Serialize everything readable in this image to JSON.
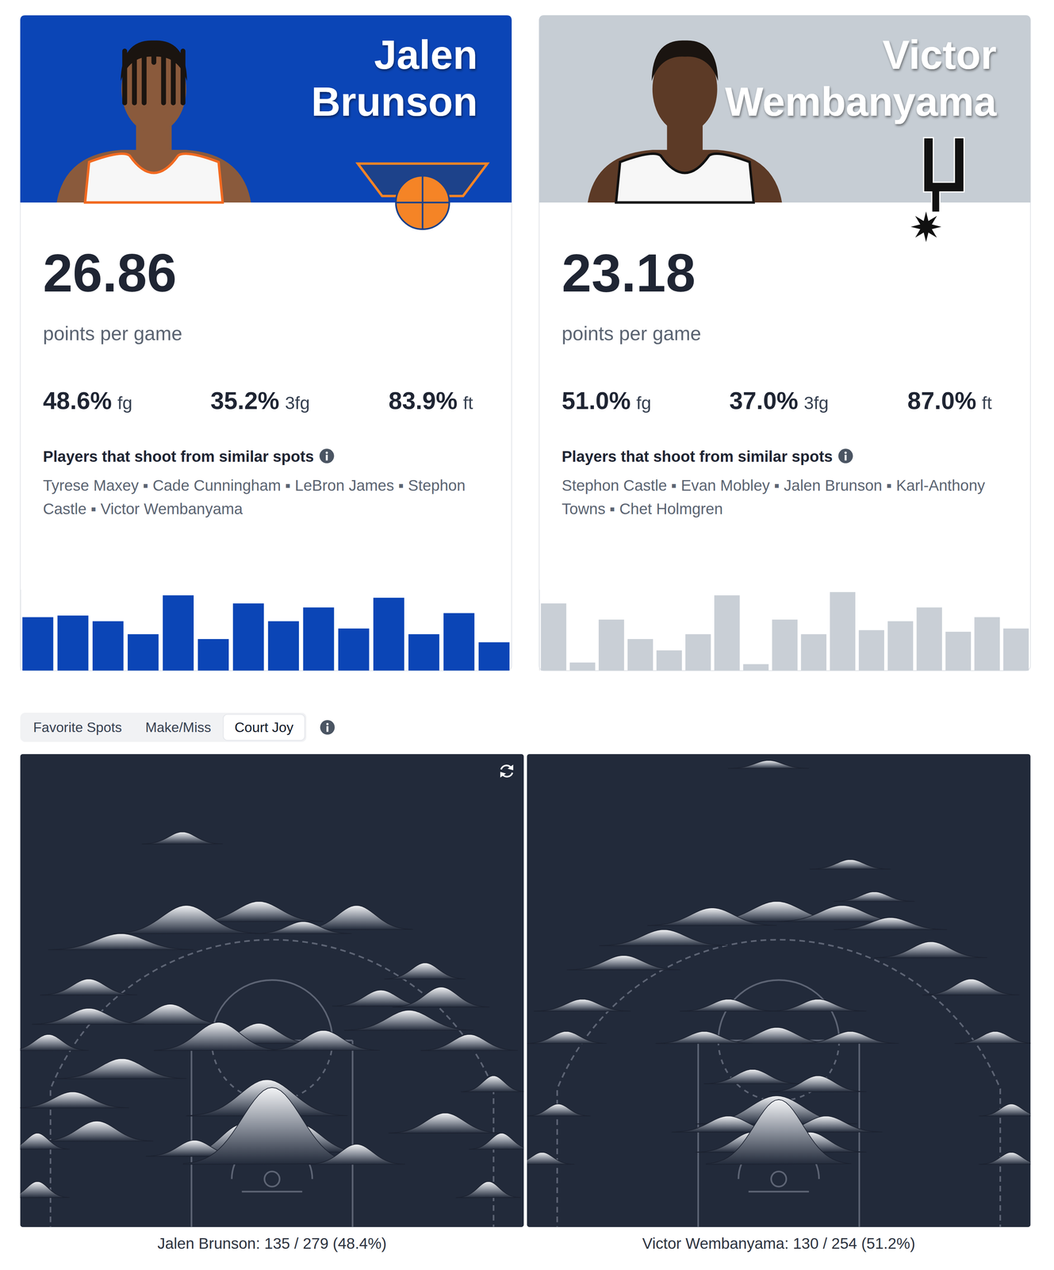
{
  "players": [
    {
      "first_name": "Jalen",
      "last_name": "Brunson",
      "ppg": "26.86",
      "ppg_label": "points per game",
      "stats": [
        {
          "value": "48.6%",
          "label": "fg"
        },
        {
          "value": "35.2%",
          "label": "3fg"
        },
        {
          "value": "83.9%",
          "label": "ft"
        }
      ],
      "similar_title": "Players that shoot from similar spots",
      "similar": [
        "Tyrese Maxey",
        "Cade Cunningham",
        "LeBron James",
        "Stephon Castle",
        "Victor Wembanyama"
      ]
    },
    {
      "first_name": "Victor",
      "last_name": "Wembanyama",
      "ppg": "23.18",
      "ppg_label": "points per game",
      "stats": [
        {
          "value": "51.0%",
          "label": "fg"
        },
        {
          "value": "37.0%",
          "label": "3fg"
        },
        {
          "value": "87.0%",
          "label": "ft"
        }
      ],
      "similar_title": "Players that shoot from similar spots",
      "similar": [
        "Stephon Castle",
        "Evan Mobley",
        "Jalen Brunson",
        "Karl-Anthony Towns",
        "Chet Holmgren"
      ]
    }
  ],
  "separator": "▪",
  "chart_data": [
    {
      "type": "bar",
      "categories": [
        null,
        null,
        null,
        null,
        null,
        null,
        null,
        null,
        null,
        null,
        null,
        null,
        null,
        null
      ],
      "values": [
        66,
        68,
        61,
        45,
        93,
        39,
        83,
        61,
        78,
        52,
        90,
        45,
        71,
        35
      ],
      "color": "#0b45b6",
      "ylim": [
        0,
        100
      ],
      "tick_labels": false,
      "grid": false
    },
    {
      "type": "bar",
      "categories": [
        null,
        null,
        null,
        null,
        null,
        null,
        null,
        null,
        null,
        null,
        null,
        null,
        null,
        null,
        null,
        null,
        null
      ],
      "values": [
        83,
        10,
        63,
        39,
        25,
        45,
        93,
        8,
        63,
        45,
        97,
        50,
        61,
        78,
        48,
        66,
        52
      ],
      "color": "#c9cfd6",
      "ylim": [
        0,
        100
      ],
      "tick_labels": false,
      "grid": false
    }
  ],
  "tabs": {
    "items": [
      "Favorite Spots",
      "Make/Miss",
      "Court Joy"
    ],
    "active": 2
  },
  "court_joy": [
    {
      "caption": "Jalen Brunson: 135 / 279 (48.4%)",
      "bumps": [
        [
          -8.9,
          38.5,
          15,
          4
        ],
        [
          -1.3,
          30.8,
          25,
          6.4
        ],
        [
          8.4,
          30.0,
          30,
          5.6
        ],
        [
          -8.5,
          29.6,
          35,
          7.2
        ],
        [
          3.1,
          29.6,
          15,
          4.8
        ],
        [
          -15.0,
          28.0,
          20,
          7.2
        ],
        [
          15.2,
          25.1,
          20,
          4
        ],
        [
          -18.2,
          23.5,
          20,
          4.8
        ],
        [
          10.8,
          22.4,
          20,
          4.8
        ],
        [
          16.8,
          22.3,
          25,
          4.8
        ],
        [
          -10.1,
          20.6,
          25,
          5.6
        ],
        [
          -18.2,
          20.6,
          20,
          5.6
        ],
        [
          13.6,
          20.0,
          25,
          6.4
        ],
        [
          -1.3,
          18.7,
          25,
          5.6
        ],
        [
          -5.3,
          18.0,
          35,
          6.4
        ],
        [
          5.1,
          18.0,
          25,
          5.6
        ],
        [
          19.6,
          18.0,
          20,
          4.8
        ],
        [
          -22.2,
          18.0,
          20,
          4
        ],
        [
          -14.9,
          15.2,
          25,
          6.4
        ],
        [
          22.0,
          13.9,
          20,
          3.2
        ],
        [
          -19.8,
          12.3,
          20,
          5.6
        ],
        [
          -0.5,
          11.5,
          45,
          8
        ],
        [
          17.2,
          9.8,
          25,
          5.6
        ],
        [
          -17.4,
          9.0,
          25,
          5.6
        ],
        [
          -23.3,
          8.2,
          20,
          3.2
        ],
        [
          22.8,
          8.2,
          20,
          3.2
        ],
        [
          2.7,
          7.9,
          35,
          6.4
        ],
        [
          -2.9,
          7.5,
          40,
          6.4
        ],
        [
          -7.7,
          7.5,
          20,
          4.8
        ],
        [
          0,
          6.7,
          95,
          8.8
        ],
        [
          8.4,
          6.7,
          25,
          4.8
        ],
        [
          -23.3,
          3.4,
          20,
          3.2
        ],
        [
          21.5,
          3.4,
          20,
          3.2
        ]
      ]
    },
    {
      "caption": "Victor Wembanyama: 130 / 254 (51.2%)",
      "bumps": [
        [
          -1,
          46,
          10,
          4
        ],
        [
          7.1,
          36,
          12,
          4
        ],
        [
          9.5,
          32.8,
          12,
          4
        ],
        [
          -0.2,
          30.8,
          25,
          7.2
        ],
        [
          6.3,
          30.8,
          20,
          6.4
        ],
        [
          -6.6,
          30.4,
          22,
          6.4
        ],
        [
          11.1,
          30,
          15,
          5.6
        ],
        [
          -11.4,
          28.4,
          20,
          6.4
        ],
        [
          15.1,
          27.2,
          20,
          5.6
        ],
        [
          -15.4,
          26,
          18,
          5.6
        ],
        [
          19.1,
          23.5,
          20,
          4.8
        ],
        [
          -5,
          21.9,
          15,
          4.8
        ],
        [
          3.9,
          21.9,
          15,
          4.8
        ],
        [
          -19.5,
          21.9,
          15,
          4.8
        ],
        [
          -0.2,
          18.7,
          20,
          5.6
        ],
        [
          -21.1,
          18.7,
          15,
          4
        ],
        [
          21.5,
          18.7,
          15,
          4
        ],
        [
          -7.4,
          18.7,
          15,
          4.8
        ],
        [
          7.1,
          18.7,
          15,
          4.8
        ],
        [
          -2.6,
          14.7,
          18,
          4.8
        ],
        [
          3.9,
          13.9,
          20,
          4.8
        ],
        [
          -21.9,
          11.5,
          15,
          3.2
        ],
        [
          23.1,
          11.5,
          15,
          3.2
        ],
        [
          -0.2,
          10.7,
          35,
          8
        ],
        [
          -5,
          9.9,
          20,
          5.6
        ],
        [
          4.7,
          9.9,
          20,
          5.6
        ],
        [
          -2.6,
          7.9,
          25,
          5.6
        ],
        [
          3.1,
          7.9,
          25,
          5.6
        ],
        [
          0,
          6.7,
          80,
          7.2
        ],
        [
          -23.5,
          6.7,
          15,
          3.2
        ],
        [
          23.1,
          6.7,
          15,
          3.2
        ]
      ]
    }
  ]
}
